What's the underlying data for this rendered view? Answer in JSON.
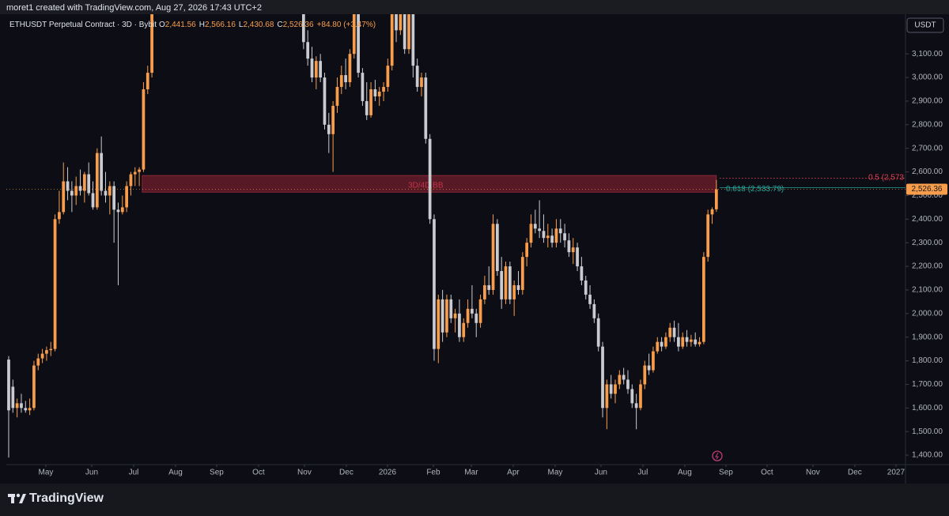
{
  "header": "moret1 created with TradingView.com, Aug 27, 2026 17:43 UTC+2",
  "footer": "TradingView",
  "chart_data": {
    "type": "candlestick",
    "legend": {
      "symbol": "ETHUSDT Perpetual Contract · 3D · Bybit",
      "ohlc": [
        {
          "key": "O",
          "value": "2,441.56"
        },
        {
          "key": "H",
          "value": "2,566.16"
        },
        {
          "key": "L",
          "value": "2,430.68"
        },
        {
          "key": "C",
          "value": "2,526.36"
        }
      ],
      "change": "+84.80 (+3.47%)"
    },
    "currency": "USDT",
    "colors": {
      "up": "#f89d4b",
      "down": "#c9cbd1"
    },
    "xlim": [
      -0.56,
      212.9
    ],
    "xticks": [
      {
        "value": 8.82,
        "label": "May"
      },
      {
        "value": 19.71,
        "label": "Jun"
      },
      {
        "value": 29.66,
        "label": "Jul"
      },
      {
        "value": 39.61,
        "label": "Aug"
      },
      {
        "value": 49.37,
        "label": "Sep"
      },
      {
        "value": 59.32,
        "label": "Oct"
      },
      {
        "value": 70.21,
        "label": "Nov"
      },
      {
        "value": 80.16,
        "label": "Dec"
      },
      {
        "value": 89.92,
        "label": "2026"
      },
      {
        "value": 100.81,
        "label": "Feb"
      },
      {
        "value": 109.82,
        "label": "Mar"
      },
      {
        "value": 119.77,
        "label": "Apr"
      },
      {
        "value": 129.72,
        "label": "May"
      },
      {
        "value": 140.61,
        "label": "Jun"
      },
      {
        "value": 150.56,
        "label": "Jul"
      },
      {
        "value": 160.5,
        "label": "Aug"
      },
      {
        "value": 170.27,
        "label": "Sep"
      },
      {
        "value": 180.03,
        "label": "Oct"
      },
      {
        "value": 190.92,
        "label": "Nov"
      },
      {
        "value": 200.86,
        "label": "Dec"
      },
      {
        "value": 210.63,
        "label": "2027"
      }
    ],
    "ylim": [
      1360,
      3268
    ],
    "yticks": [
      {
        "value": 1400,
        "label": "1,400.00"
      },
      {
        "value": 1500,
        "label": "1,500.00"
      },
      {
        "value": 1600,
        "label": "1,600.00"
      },
      {
        "value": 1700,
        "label": "1,700.00"
      },
      {
        "value": 1800,
        "label": "1,800.00"
      },
      {
        "value": 1900,
        "label": "1,900.00"
      },
      {
        "value": 2000,
        "label": "2,000.00"
      },
      {
        "value": 2100,
        "label": "2,100.00"
      },
      {
        "value": 2200,
        "label": "2,200.00"
      },
      {
        "value": 2300,
        "label": "2,300.00"
      },
      {
        "value": 2400,
        "label": "2,400.00"
      },
      {
        "value": 2500,
        "label": "2,500.00"
      },
      {
        "value": 2600,
        "label": "2,600.00"
      },
      {
        "value": 2700,
        "label": "2,700.00"
      },
      {
        "value": 2800,
        "label": "2,800.00"
      },
      {
        "value": 2900,
        "label": "2,900.00"
      },
      {
        "value": 3000,
        "label": "3,000.00"
      },
      {
        "value": 3100,
        "label": "3,100.00"
      }
    ],
    "last_price": {
      "value": 2526.36,
      "label": "2,526.36"
    },
    "zone": {
      "label": "3D/4D BB",
      "range": [
        2514,
        2585
      ]
    },
    "levels": [
      {
        "label": "0.5 (2,573",
        "value": 2573,
        "color": "#e0404f"
      },
      {
        "label": "0.618 (2,533.79)",
        "value": 2533.79,
        "color": "#26a69a"
      }
    ],
    "candles": [
      [
        1805,
        1820,
        1390,
        1590
      ],
      [
        1690,
        1720,
        1580,
        1600
      ],
      [
        1600,
        1640,
        1560,
        1620
      ],
      [
        1620,
        1660,
        1580,
        1600
      ],
      [
        1600,
        1630,
        1580,
        1590
      ],
      [
        1590,
        1640,
        1570,
        1600
      ],
      [
        1600,
        1800,
        1590,
        1780
      ],
      [
        1780,
        1830,
        1760,
        1810
      ],
      [
        1810,
        1850,
        1790,
        1830
      ],
      [
        1830,
        1860,
        1800,
        1845
      ],
      [
        1845,
        1880,
        1820,
        1850
      ],
      [
        1850,
        2420,
        1840,
        2400
      ],
      [
        2400,
        2520,
        2380,
        2430
      ],
      [
        2430,
        2640,
        2420,
        2560
      ],
      [
        2560,
        2620,
        2480,
        2520
      ],
      [
        2520,
        2560,
        2430,
        2500
      ],
      [
        2500,
        2580,
        2460,
        2540
      ],
      [
        2540,
        2610,
        2500,
        2520
      ],
      [
        2520,
        2600,
        2470,
        2590
      ],
      [
        2590,
        2640,
        2500,
        2510
      ],
      [
        2510,
        2560,
        2440,
        2450
      ],
      [
        2450,
        2700,
        2440,
        2680
      ],
      [
        2680,
        2750,
        2500,
        2520
      ],
      [
        2520,
        2600,
        2470,
        2500
      ],
      [
        2500,
        2560,
        2420,
        2540
      ],
      [
        2540,
        2560,
        2300,
        2440
      ],
      [
        2440,
        2470,
        2120,
        2430
      ],
      [
        2430,
        2500,
        2420,
        2450
      ],
      [
        2450,
        2560,
        2430,
        2540
      ],
      [
        2540,
        2600,
        2500,
        2590
      ],
      [
        2590,
        2620,
        2540,
        2600
      ],
      [
        2600,
        2620,
        2540,
        2610
      ],
      [
        2610,
        2980,
        2600,
        2950
      ],
      [
        2950,
        3050,
        2930,
        3020
      ],
      [
        3020,
        3300,
        3000,
        3280
      ],
      null,
      null,
      null,
      null,
      null,
      null,
      null,
      null,
      null,
      null,
      null,
      null,
      null,
      null,
      null,
      null,
      null,
      null,
      null,
      null,
      null,
      null,
      null,
      null,
      null,
      null,
      null,
      null,
      null,
      null,
      null,
      null,
      null,
      null,
      null,
      [
        3280,
        3300,
        3120,
        3150
      ],
      [
        3150,
        3200,
        3050,
        3080
      ],
      [
        3080,
        3130,
        2980,
        3000
      ],
      [
        3000,
        3090,
        2950,
        3070
      ],
      [
        3070,
        3100,
        2980,
        3000
      ],
      [
        3000,
        3020,
        2780,
        2800
      ],
      [
        2800,
        2850,
        2680,
        2760
      ],
      [
        2760,
        2900,
        2600,
        2880
      ],
      [
        2880,
        3000,
        2850,
        2960
      ],
      [
        2960,
        3050,
        2930,
        3010
      ],
      [
        3010,
        3080,
        2950,
        2980
      ],
      [
        2980,
        3120,
        2960,
        3100
      ],
      [
        3100,
        3300,
        3080,
        3270
      ],
      [
        3270,
        3290,
        3000,
        3020
      ],
      [
        3020,
        3040,
        2880,
        2900
      ],
      [
        2900,
        2980,
        2820,
        2840
      ],
      [
        2840,
        2980,
        2830,
        2950
      ],
      [
        2950,
        2990,
        2900,
        2920
      ],
      [
        2920,
        2960,
        2880,
        2940
      ],
      [
        2940,
        2980,
        2900,
        2960
      ],
      [
        2960,
        3080,
        2940,
        3050
      ],
      [
        3050,
        3300,
        3030,
        3280
      ],
      [
        3280,
        3300,
        3150,
        3200
      ],
      [
        3200,
        3300,
        3180,
        3280
      ],
      [
        3280,
        3300,
        3100,
        3120
      ],
      [
        3120,
        3300,
        3100,
        3280
      ],
      [
        3280,
        3300,
        3000,
        3050
      ],
      [
        3050,
        3080,
        2940,
        2960
      ],
      [
        2960,
        3020,
        2920,
        3000
      ],
      [
        3000,
        3020,
        2720,
        2740
      ],
      [
        2740,
        2760,
        2380,
        2400
      ],
      [
        2400,
        2420,
        1800,
        1850
      ],
      [
        1850,
        2080,
        1790,
        2060
      ],
      [
        2060,
        2100,
        1880,
        1920
      ],
      [
        1920,
        2080,
        1900,
        2060
      ],
      [
        2060,
        2080,
        1960,
        1980
      ],
      [
        1980,
        2020,
        1920,
        2000
      ],
      [
        2000,
        2060,
        1880,
        1900
      ],
      [
        1900,
        1980,
        1880,
        1960
      ],
      [
        1960,
        2060,
        1940,
        2020
      ],
      [
        2020,
        2120,
        1980,
        2000
      ],
      [
        2000,
        2020,
        1900,
        1960
      ],
      [
        1960,
        2080,
        1940,
        2060
      ],
      [
        2060,
        2160,
        2040,
        2120
      ],
      [
        2120,
        2200,
        2080,
        2100
      ],
      [
        2100,
        2420,
        2080,
        2380
      ],
      [
        2380,
        2400,
        2160,
        2180
      ],
      [
        2180,
        2240,
        2020,
        2060
      ],
      [
        2060,
        2220,
        2040,
        2200
      ],
      [
        2200,
        2220,
        2040,
        2060
      ],
      [
        2060,
        2140,
        1990,
        2120
      ],
      [
        2120,
        2180,
        2080,
        2100
      ],
      [
        2100,
        2260,
        2080,
        2240
      ],
      [
        2240,
        2320,
        2200,
        2300
      ],
      [
        2300,
        2420,
        2280,
        2380
      ],
      [
        2380,
        2440,
        2340,
        2360
      ],
      [
        2360,
        2480,
        2320,
        2350
      ],
      [
        2350,
        2420,
        2300,
        2320
      ],
      [
        2320,
        2380,
        2280,
        2330
      ],
      [
        2330,
        2360,
        2280,
        2300
      ],
      [
        2300,
        2400,
        2280,
        2360
      ],
      [
        2360,
        2400,
        2300,
        2340
      ],
      [
        2340,
        2380,
        2280,
        2310
      ],
      [
        2310,
        2340,
        2240,
        2260
      ],
      [
        2260,
        2320,
        2210,
        2280
      ],
      [
        2280,
        2300,
        2180,
        2200
      ],
      [
        2200,
        2240,
        2120,
        2140
      ],
      [
        2140,
        2160,
        2060,
        2080
      ],
      [
        2080,
        2120,
        2020,
        2040
      ],
      [
        2040,
        2060,
        1960,
        1980
      ],
      [
        1980,
        2000,
        1840,
        1860
      ],
      [
        1860,
        1880,
        1560,
        1600
      ],
      [
        1600,
        1720,
        1510,
        1700
      ],
      [
        1700,
        1740,
        1640,
        1660
      ],
      [
        1660,
        1720,
        1620,
        1700
      ],
      [
        1700,
        1760,
        1680,
        1740
      ],
      [
        1740,
        1770,
        1700,
        1720
      ],
      [
        1720,
        1760,
        1660,
        1680
      ],
      [
        1680,
        1700,
        1600,
        1620
      ],
      [
        1620,
        1660,
        1510,
        1600
      ],
      [
        1600,
        1720,
        1590,
        1700
      ],
      [
        1700,
        1800,
        1680,
        1780
      ],
      [
        1780,
        1830,
        1740,
        1760
      ],
      [
        1760,
        1860,
        1750,
        1840
      ],
      [
        1840,
        1900,
        1830,
        1880
      ],
      [
        1880,
        1900,
        1840,
        1860
      ],
      [
        1860,
        1920,
        1850,
        1900
      ],
      [
        1900,
        1960,
        1880,
        1940
      ],
      [
        1940,
        1970,
        1880,
        1900
      ],
      [
        1900,
        1960,
        1840,
        1860
      ],
      [
        1860,
        1920,
        1850,
        1900
      ],
      [
        1900,
        1930,
        1860,
        1880
      ],
      [
        1880,
        1910,
        1860,
        1890
      ],
      [
        1890,
        1920,
        1860,
        1870
      ],
      [
        1870,
        1900,
        1860,
        1880
      ],
      [
        1880,
        2260,
        1870,
        2240
      ],
      [
        2240,
        2440,
        2220,
        2420
      ],
      [
        2420,
        2450,
        2380,
        2441.56
      ],
      [
        2441.56,
        2566.16,
        2430.68,
        2526.36
      ]
    ]
  }
}
